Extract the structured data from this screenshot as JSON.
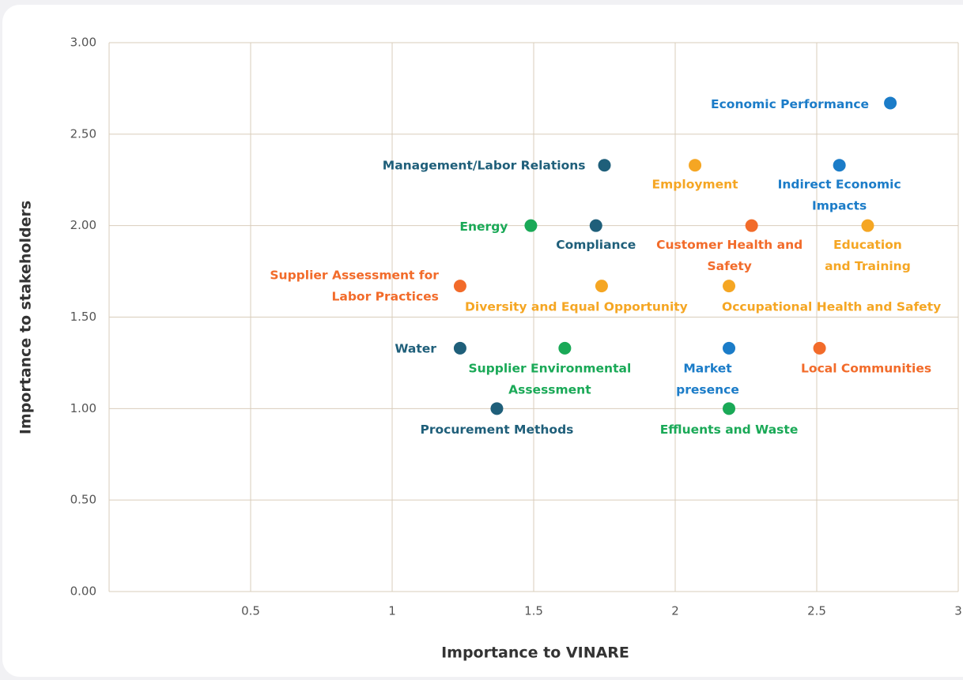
{
  "chart_data": {
    "type": "scatter",
    "x_label": "Importance to VINARE",
    "y_label": "Importance to stakeholders",
    "xlim": [
      0,
      3
    ],
    "ylim": [
      0,
      3
    ],
    "xticks": [
      0.5,
      1,
      1.5,
      2,
      2.5,
      3
    ],
    "yticks": [
      {
        "value": 0,
        "label": "0.00"
      },
      {
        "value": 0.5,
        "label": "0.50"
      },
      {
        "value": 1,
        "label": "1.00"
      },
      {
        "value": 1.5,
        "label": "1.50"
      },
      {
        "value": 2,
        "label": "2.00"
      },
      {
        "value": 2.5,
        "label": "2.50"
      },
      {
        "value": 3,
        "label": "3.00"
      }
    ],
    "grid": true,
    "labels": [
      [
        "Economic Performance"
      ],
      [
        "Management/Labor Relations"
      ],
      [
        "Employment"
      ],
      [
        "Indirect Economic",
        "Impacts"
      ],
      [
        "Energy"
      ],
      [
        "Compliance"
      ],
      [
        "Customer Health and",
        "Safety"
      ],
      [
        "Education",
        "and Training"
      ],
      [
        "Supplier Assessment for",
        "Labor Practices"
      ],
      [
        "Diversity and Equal Opportunity"
      ],
      [
        "Occupational Health and Safety"
      ],
      [
        "Water"
      ],
      [
        "Supplier Environmental",
        "Assessment"
      ],
      [
        "Market",
        "presence"
      ],
      [
        "Local Communities"
      ],
      [
        "Procurement Methods"
      ],
      [
        "Effluents and Waste"
      ]
    ],
    "x": [
      2.76,
      1.75,
      2.07,
      2.58,
      1.49,
      1.72,
      2.27,
      2.68,
      1.24,
      1.74,
      2.19,
      1.24,
      1.61,
      2.19,
      2.51,
      1.37,
      2.19
    ],
    "y": [
      2.67,
      2.33,
      2.33,
      2.33,
      2.0,
      2.0,
      2.0,
      2.0,
      1.67,
      1.67,
      1.67,
      1.33,
      1.33,
      1.33,
      1.33,
      1.0,
      1.0
    ],
    "colors": [
      "#1b7cc8",
      "#1f5f7a",
      "#f5a623",
      "#1b7cc8",
      "#1aa957",
      "#1f5f7a",
      "#f26b2a",
      "#f5a623",
      "#f26b2a",
      "#f5a623",
      "#f5a623",
      "#1f5f7a",
      "#1aa957",
      "#1b7cc8",
      "#f26b2a",
      "#1f5f7a",
      "#1aa957"
    ]
  }
}
